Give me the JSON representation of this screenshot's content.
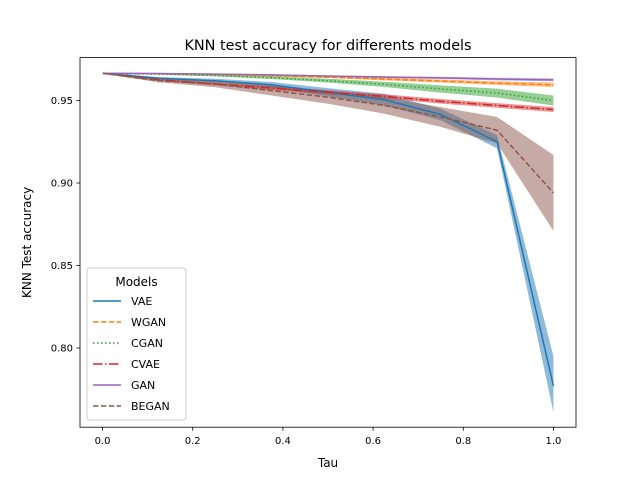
{
  "chart_data": {
    "type": "line",
    "title": "KNN test accuracy for differents models",
    "xlabel": "Tau",
    "ylabel": "KNN Test accuracy",
    "xlim": [
      -0.05,
      1.05
    ],
    "ylim": [
      0.752,
      0.976
    ],
    "x": [
      0.0,
      0.125,
      0.25,
      0.375,
      0.5,
      0.625,
      0.75,
      0.875,
      1.0
    ],
    "xticks": [
      0.0,
      0.2,
      0.4,
      0.6,
      0.8,
      1.0
    ],
    "xtick_labels": [
      "0.0",
      "0.2",
      "0.4",
      "0.6",
      "0.8",
      "1.0"
    ],
    "yticks": [
      0.8,
      0.85,
      0.9,
      0.95
    ],
    "ytick_labels": [
      "0.80",
      "0.85",
      "0.90",
      "0.95"
    ],
    "grid": false,
    "legend": {
      "title": "Models",
      "placement": "lower-left"
    },
    "series": [
      {
        "name": "VAE",
        "color": "#1f77b4",
        "dash": "solid",
        "values": [
          0.9665,
          0.9635,
          0.962,
          0.9595,
          0.955,
          0.9505,
          0.9415,
          0.925,
          0.777
        ],
        "lower": [
          0.9662,
          0.9628,
          0.9608,
          0.9578,
          0.9525,
          0.947,
          0.938,
          0.921,
          0.761
        ],
        "upper": [
          0.9668,
          0.9642,
          0.9632,
          0.9612,
          0.9575,
          0.954,
          0.945,
          0.929,
          0.795
        ]
      },
      {
        "name": "WGAN",
        "color": "#ff7f0e",
        "dash": "dashed",
        "values": [
          0.9665,
          0.9662,
          0.9657,
          0.965,
          0.9642,
          0.963,
          0.9618,
          0.9605,
          0.9595
        ],
        "lower": [
          0.9663,
          0.9659,
          0.9653,
          0.9645,
          0.9636,
          0.9622,
          0.9609,
          0.9594,
          0.9582
        ],
        "upper": [
          0.9667,
          0.9665,
          0.9661,
          0.9655,
          0.9648,
          0.9638,
          0.9627,
          0.9616,
          0.9608
        ]
      },
      {
        "name": "CGAN",
        "color": "#2ca02c",
        "dash": "dotted",
        "values": [
          0.9665,
          0.966,
          0.9652,
          0.9638,
          0.962,
          0.9598,
          0.957,
          0.9545,
          0.95
        ],
        "lower": [
          0.9663,
          0.9656,
          0.9646,
          0.963,
          0.9608,
          0.9582,
          0.9548,
          0.9518,
          0.947
        ],
        "upper": [
          0.9667,
          0.9664,
          0.9658,
          0.9646,
          0.9632,
          0.9614,
          0.9592,
          0.9572,
          0.953
        ]
      },
      {
        "name": "CVAE",
        "color": "#d62728",
        "dash": "dashdot",
        "values": [
          0.9665,
          0.9625,
          0.96,
          0.9575,
          0.955,
          0.9525,
          0.9495,
          0.947,
          0.9445
        ],
        "lower": [
          0.9662,
          0.9619,
          0.9591,
          0.9564,
          0.9538,
          0.9512,
          0.9481,
          0.9456,
          0.943
        ],
        "upper": [
          0.9668,
          0.9631,
          0.9609,
          0.9586,
          0.9562,
          0.9538,
          0.9509,
          0.9484,
          0.946
        ]
      },
      {
        "name": "GAN",
        "color": "#9467bd",
        "dash": "solid",
        "values": [
          0.9665,
          0.9664,
          0.966,
          0.9655,
          0.9648,
          0.9642,
          0.9637,
          0.963,
          0.9625
        ],
        "lower": [
          0.9664,
          0.9662,
          0.9657,
          0.9651,
          0.9643,
          0.9636,
          0.963,
          0.9622,
          0.9616
        ],
        "upper": [
          0.9666,
          0.9666,
          0.9663,
          0.9659,
          0.9653,
          0.9648,
          0.9644,
          0.9638,
          0.9634
        ]
      },
      {
        "name": "BEGAN",
        "color": "#8c564b",
        "dash": "dashed",
        "values": [
          0.9665,
          0.962,
          0.96,
          0.956,
          0.952,
          0.947,
          0.94,
          0.932,
          0.894
        ],
        "lower": [
          0.9662,
          0.961,
          0.958,
          0.953,
          0.948,
          0.942,
          0.934,
          0.924,
          0.871
        ],
        "upper": [
          0.9668,
          0.963,
          0.962,
          0.959,
          0.956,
          0.952,
          0.946,
          0.94,
          0.917
        ]
      }
    ]
  }
}
